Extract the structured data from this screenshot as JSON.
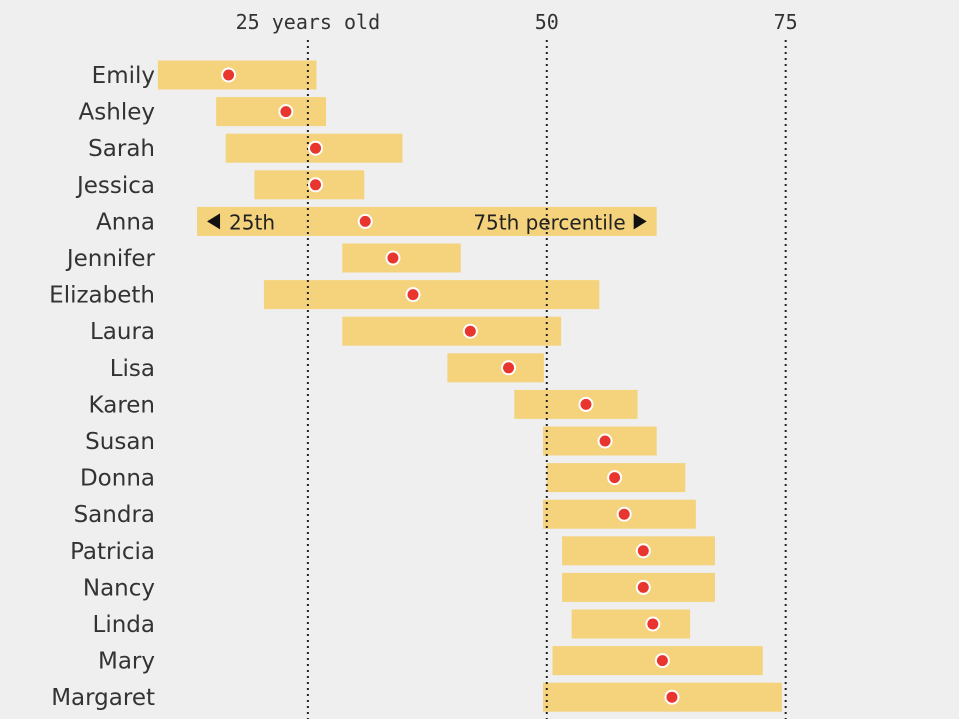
{
  "chart_data": {
    "type": "range",
    "title": "",
    "xlabel": "",
    "ylabel": "",
    "xlim": [
      9,
      90
    ],
    "x_ticks": [
      {
        "value": 25,
        "label": "25 years old"
      },
      {
        "value": 50,
        "label": "50"
      },
      {
        "value": 75,
        "label": "75"
      }
    ],
    "annotation": {
      "row": "Anna",
      "left": "25th",
      "right": "75th percentile"
    },
    "colors": {
      "bar": "#f4d37c",
      "dot": "#e8352d",
      "dot_stroke": "#ffffff",
      "gridline": "#222222",
      "text": "#333333"
    },
    "rows": [
      {
        "name": "Emily",
        "p25": 9.3,
        "median": 16.7,
        "p75": 25.9
      },
      {
        "name": "Ashley",
        "p25": 15.4,
        "median": 22.7,
        "p75": 26.9
      },
      {
        "name": "Sarah",
        "p25": 16.4,
        "median": 25.8,
        "p75": 34.9
      },
      {
        "name": "Jessica",
        "p25": 19.4,
        "median": 25.8,
        "p75": 30.9
      },
      {
        "name": "Anna",
        "p25": 13.4,
        "median": 31.0,
        "p75": 61.5
      },
      {
        "name": "Jennifer",
        "p25": 28.6,
        "median": 33.9,
        "p75": 41.0
      },
      {
        "name": "Elizabeth",
        "p25": 20.4,
        "median": 36.0,
        "p75": 55.5
      },
      {
        "name": "Laura",
        "p25": 28.6,
        "median": 42.0,
        "p75": 51.5
      },
      {
        "name": "Lisa",
        "p25": 39.6,
        "median": 46.0,
        "p75": 49.7
      },
      {
        "name": "Karen",
        "p25": 46.6,
        "median": 54.1,
        "p75": 59.5
      },
      {
        "name": "Susan",
        "p25": 49.6,
        "median": 56.1,
        "p75": 61.5
      },
      {
        "name": "Donna",
        "p25": 50.0,
        "median": 57.1,
        "p75": 64.5
      },
      {
        "name": "Sandra",
        "p25": 49.6,
        "median": 58.1,
        "p75": 65.6
      },
      {
        "name": "Patricia",
        "p25": 51.6,
        "median": 60.1,
        "p75": 67.6
      },
      {
        "name": "Nancy",
        "p25": 51.6,
        "median": 60.1,
        "p75": 67.6
      },
      {
        "name": "Linda",
        "p25": 52.6,
        "median": 61.1,
        "p75": 65.0
      },
      {
        "name": "Mary",
        "p25": 50.6,
        "median": 62.1,
        "p75": 72.6
      },
      {
        "name": "Margaret",
        "p25": 49.6,
        "median": 63.1,
        "p75": 74.6
      }
    ]
  }
}
